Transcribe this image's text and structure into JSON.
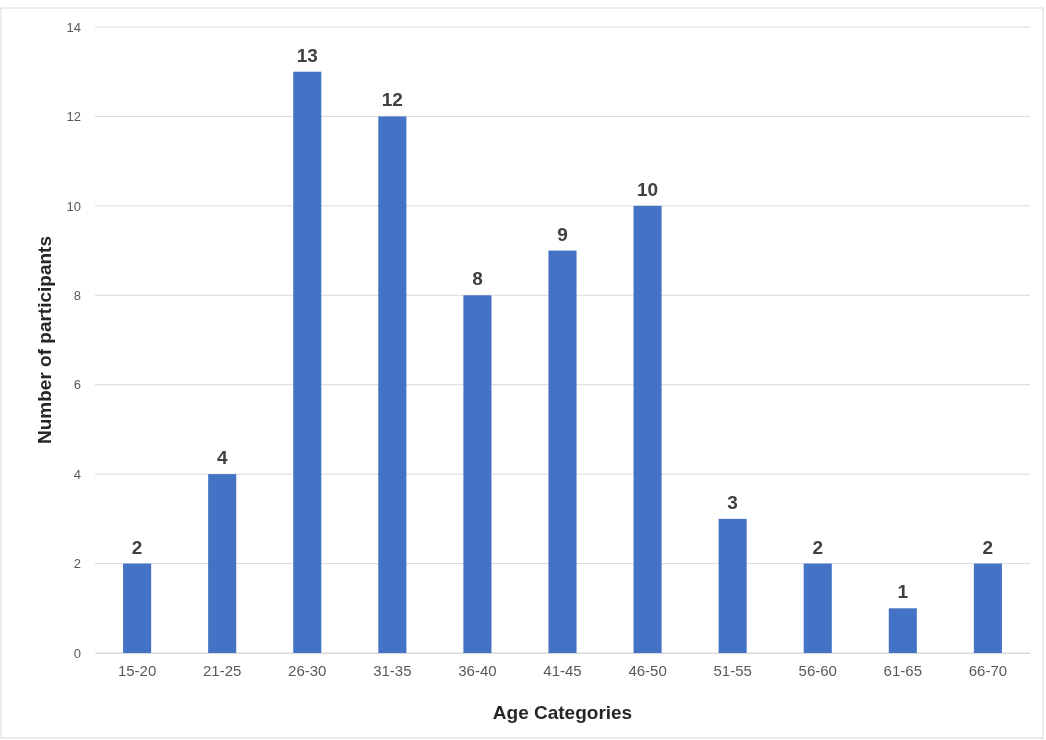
{
  "chart_data": {
    "type": "bar",
    "xlabel": "Age Categories",
    "ylabel": "Number of participants",
    "categories": [
      "15-20",
      "21-25",
      "26-30",
      "31-35",
      "36-40",
      "41-45",
      "46-50",
      "51-55",
      "56-60",
      "61-65",
      "66-70"
    ],
    "values": [
      2,
      4,
      13,
      12,
      8,
      9,
      10,
      3,
      2,
      1,
      2
    ],
    "color": "#4472c4",
    "ylim": [
      0,
      14
    ],
    "yticks": [
      0,
      2,
      4,
      6,
      8,
      10,
      12,
      14
    ],
    "grid": "y",
    "data_labels": true
  }
}
